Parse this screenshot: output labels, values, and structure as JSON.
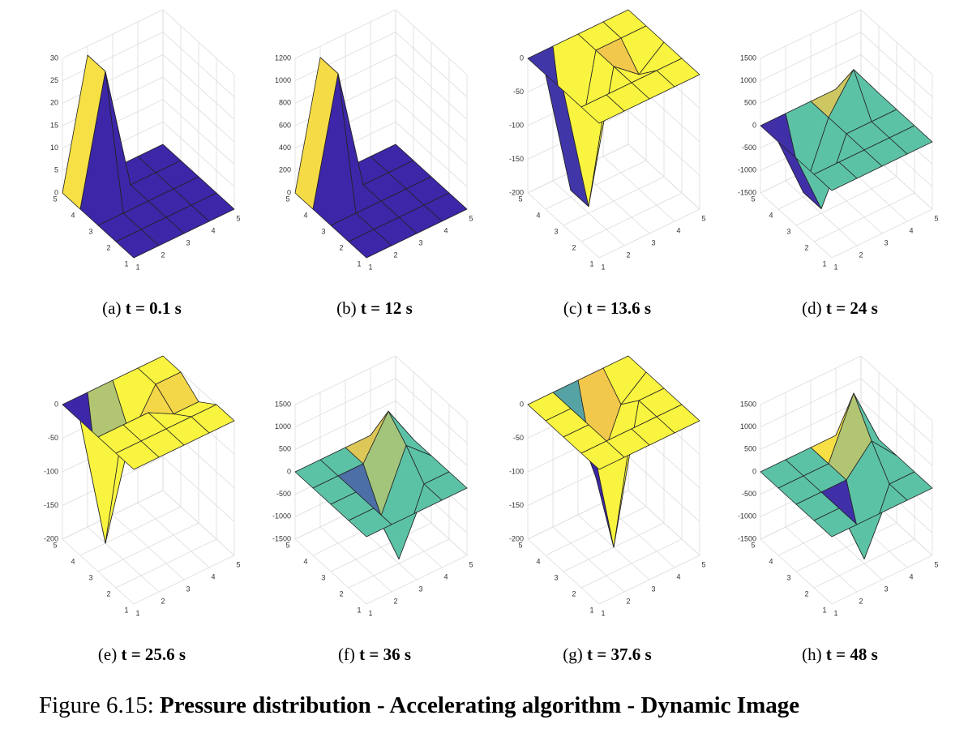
{
  "chart_data": [
    {
      "type": "surface",
      "caption_label": "(a)",
      "caption": "t = 0.1 s",
      "x": [
        1,
        2,
        3,
        4,
        5
      ],
      "y": [
        1,
        2,
        3,
        4,
        5
      ],
      "xlim": [
        1,
        5
      ],
      "ylim": [
        1,
        5
      ],
      "xticks": [
        1,
        2,
        3,
        4,
        5
      ],
      "yticks": [
        1,
        2,
        3,
        4,
        5
      ],
      "zlim": [
        0,
        30
      ],
      "zticks": [
        0,
        5,
        10,
        15,
        20,
        25,
        30
      ],
      "z": [
        [
          0,
          0,
          0,
          0,
          0
        ],
        [
          0,
          0,
          0,
          0,
          0
        ],
        [
          0,
          0,
          0,
          0,
          0
        ],
        [
          0,
          28,
          0,
          0,
          0
        ],
        [
          0,
          28,
          0,
          0,
          0
        ]
      ]
    },
    {
      "type": "surface",
      "caption_label": "(b)",
      "caption": "t = 12 s",
      "x": [
        1,
        2,
        3,
        4,
        5
      ],
      "y": [
        1,
        2,
        3,
        4,
        5
      ],
      "xlim": [
        1,
        5
      ],
      "ylim": [
        1,
        5
      ],
      "xticks": [
        1,
        2,
        3,
        4,
        5
      ],
      "yticks": [
        1,
        2,
        3,
        4,
        5
      ],
      "zlim": [
        0,
        1200
      ],
      "zticks": [
        0,
        200,
        400,
        600,
        800,
        1000,
        1200
      ],
      "z": [
        [
          0,
          0,
          0,
          0,
          0
        ],
        [
          0,
          0,
          0,
          0,
          0
        ],
        [
          0,
          0,
          0,
          0,
          0
        ],
        [
          0,
          1100,
          0,
          0,
          0
        ],
        [
          0,
          1100,
          0,
          0,
          0
        ]
      ]
    },
    {
      "type": "surface",
      "caption_label": "(c)",
      "caption": "t = 13.6 s",
      "x": [
        1,
        2,
        3,
        4,
        5
      ],
      "y": [
        1,
        2,
        3,
        4,
        5
      ],
      "xlim": [
        1,
        5
      ],
      "ylim": [
        1,
        5
      ],
      "xticks": [
        1,
        2,
        3,
        4,
        5
      ],
      "yticks": [
        1,
        2,
        3,
        4,
        5
      ],
      "zlim": [
        -200,
        0
      ],
      "zticks": [
        -200,
        -150,
        -100,
        -50,
        0
      ],
      "z": [
        [
          0,
          0,
          0,
          0,
          0
        ],
        [
          0,
          0,
          0,
          0,
          0
        ],
        [
          0,
          -190,
          0,
          -30,
          0
        ],
        [
          0,
          -190,
          0,
          0,
          0
        ],
        [
          0,
          0,
          0,
          0,
          0
        ]
      ]
    },
    {
      "type": "surface",
      "caption_label": "(d)",
      "caption": "t = 24 s",
      "x": [
        1,
        2,
        3,
        4,
        5
      ],
      "y": [
        1,
        2,
        3,
        4,
        5
      ],
      "xlim": [
        1,
        5
      ],
      "ylim": [
        1,
        5
      ],
      "xticks": [
        1,
        2,
        3,
        4,
        5
      ],
      "yticks": [
        1,
        2,
        3,
        4,
        5
      ],
      "zlim": [
        -1500,
        1500
      ],
      "zticks": [
        -1500,
        -1000,
        -500,
        0,
        500,
        1000,
        1500
      ],
      "z": [
        [
          0,
          0,
          0,
          0,
          0
        ],
        [
          0,
          0,
          0,
          0,
          0
        ],
        [
          0,
          -1400,
          0,
          0,
          0
        ],
        [
          0,
          -1400,
          0,
          800,
          0
        ],
        [
          0,
          0,
          0,
          0,
          0
        ]
      ]
    },
    {
      "type": "surface",
      "caption_label": "(e)",
      "caption": "t = 25.6 s",
      "x": [
        1,
        2,
        3,
        4,
        5
      ],
      "y": [
        1,
        2,
        3,
        4,
        5
      ],
      "xlim": [
        1,
        5
      ],
      "ylim": [
        1,
        5
      ],
      "xticks": [
        1,
        2,
        3,
        4,
        5
      ],
      "yticks": [
        1,
        2,
        3,
        4,
        5
      ],
      "zlim": [
        -200,
        0
      ],
      "zticks": [
        -200,
        -150,
        -100,
        -50,
        0
      ],
      "z": [
        [
          0,
          0,
          0,
          0,
          0
        ],
        [
          0,
          0,
          0,
          0,
          0
        ],
        [
          0,
          0,
          0,
          -20,
          -20
        ],
        [
          0,
          -200,
          -60,
          0,
          0
        ],
        [
          0,
          0,
          0,
          0,
          0
        ]
      ]
    },
    {
      "type": "surface",
      "caption_label": "(f)",
      "caption": "t = 36 s",
      "x": [
        1,
        2,
        3,
        4,
        5
      ],
      "y": [
        1,
        2,
        3,
        4,
        5
      ],
      "xlim": [
        1,
        5
      ],
      "ylim": [
        1,
        5
      ],
      "xticks": [
        1,
        2,
        3,
        4,
        5
      ],
      "yticks": [
        1,
        2,
        3,
        4,
        5
      ],
      "zlim": [
        -1500,
        1500
      ],
      "zticks": [
        -1500,
        -1000,
        -500,
        0,
        500,
        1000,
        1500
      ],
      "z": [
        [
          0,
          0,
          0,
          0,
          0
        ],
        [
          0,
          0,
          -1400,
          0,
          0
        ],
        [
          0,
          0,
          -800,
          500,
          0
        ],
        [
          0,
          0,
          0,
          900,
          0
        ],
        [
          0,
          0,
          0,
          0,
          0
        ]
      ]
    },
    {
      "type": "surface",
      "caption_label": "(g)",
      "caption": "t = 37.6 s",
      "x": [
        1,
        2,
        3,
        4,
        5
      ],
      "y": [
        1,
        2,
        3,
        4,
        5
      ],
      "xlim": [
        1,
        5
      ],
      "ylim": [
        1,
        5
      ],
      "xticks": [
        1,
        2,
        3,
        4,
        5
      ],
      "yticks": [
        1,
        2,
        3,
        4,
        5
      ],
      "zlim": [
        -200,
        0
      ],
      "zticks": [
        -200,
        -150,
        -100,
        -50,
        0
      ],
      "z": [
        [
          0,
          0,
          0,
          0,
          0
        ],
        [
          0,
          0,
          0,
          0,
          0
        ],
        [
          0,
          0,
          -200,
          0,
          0
        ],
        [
          0,
          0,
          -120,
          -30,
          0
        ],
        [
          0,
          0,
          0,
          0,
          0
        ]
      ]
    },
    {
      "type": "surface",
      "caption_label": "(h)",
      "caption": "t = 48 s",
      "x": [
        1,
        2,
        3,
        4,
        5
      ],
      "y": [
        1,
        2,
        3,
        4,
        5
      ],
      "xlim": [
        1,
        5
      ],
      "ylim": [
        1,
        5
      ],
      "xticks": [
        1,
        2,
        3,
        4,
        5
      ],
      "yticks": [
        1,
        2,
        3,
        4,
        5
      ],
      "zlim": [
        -1500,
        1500
      ],
      "zticks": [
        -1500,
        -1000,
        -500,
        0,
        500,
        1000,
        1500
      ],
      "z": [
        [
          0,
          0,
          0,
          0,
          0
        ],
        [
          0,
          0,
          -1400,
          0,
          0
        ],
        [
          0,
          0,
          0,
          600,
          0
        ],
        [
          0,
          0,
          0,
          1300,
          0
        ],
        [
          0,
          0,
          0,
          0,
          0
        ]
      ]
    }
  ],
  "figure": {
    "label": "Figure 6.15:",
    "title": "Pressure distribution - Accelerating algorithm - Dynamic Image"
  }
}
